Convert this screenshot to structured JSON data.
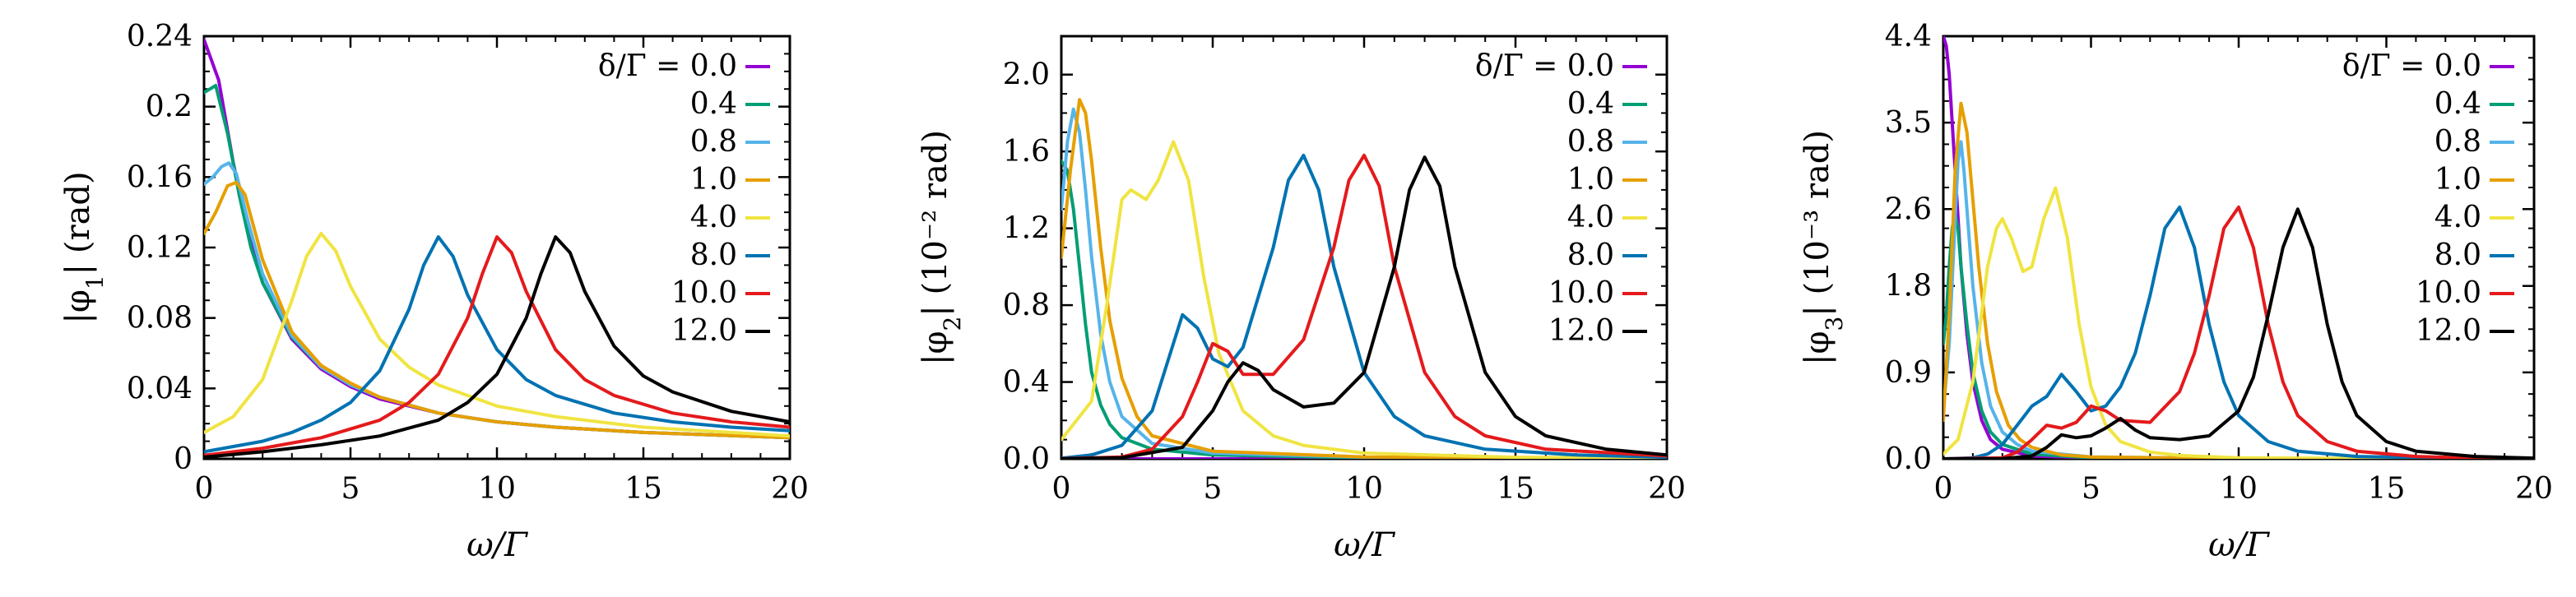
{
  "chart_data": [
    {
      "type": "line",
      "xlabel": "ω/Γ",
      "ylabel": "|φ1| (rad)",
      "xlim": [
        0,
        20
      ],
      "ylim": [
        0,
        0.24
      ],
      "xticks": [
        "0",
        "5",
        "10",
        "15",
        "20"
      ],
      "yticks": [
        "0",
        "0.04",
        "0.08",
        "0.12",
        "0.16",
        "0.2",
        "0.24"
      ],
      "legend_title": "δ/Γ = ",
      "legend_position": "top-right",
      "series": [
        {
          "name": "0.0",
          "color": "#9400d3",
          "x": [
            0,
            0.5,
            1,
            1.5,
            2,
            3,
            4,
            5,
            6,
            8,
            10,
            12,
            15,
            20
          ],
          "y": [
            0.238,
            0.215,
            0.168,
            0.128,
            0.1,
            0.068,
            0.051,
            0.041,
            0.034,
            0.026,
            0.021,
            0.018,
            0.015,
            0.012
          ]
        },
        {
          "name": "0.4",
          "color": "#009e73",
          "x": [
            0,
            0.4,
            0.8,
            1.2,
            1.6,
            2,
            3,
            4,
            5,
            6,
            8,
            10,
            12,
            15,
            20
          ],
          "y": [
            0.208,
            0.212,
            0.185,
            0.15,
            0.12,
            0.1,
            0.069,
            0.052,
            0.042,
            0.035,
            0.026,
            0.021,
            0.018,
            0.015,
            0.012
          ]
        },
        {
          "name": "0.8",
          "color": "#56b4e9",
          "x": [
            0,
            0.3,
            0.6,
            0.85,
            1.1,
            1.5,
            2,
            3,
            4,
            5,
            6,
            8,
            10,
            12,
            15,
            20
          ],
          "y": [
            0.156,
            0.16,
            0.166,
            0.168,
            0.162,
            0.135,
            0.105,
            0.07,
            0.052,
            0.042,
            0.035,
            0.026,
            0.021,
            0.018,
            0.015,
            0.012
          ]
        },
        {
          "name": "1.0",
          "color": "#e69f00",
          "x": [
            0,
            0.4,
            0.8,
            1.1,
            1.4,
            2,
            3,
            4,
            5,
            6,
            8,
            10,
            12,
            15,
            20
          ],
          "y": [
            0.128,
            0.14,
            0.155,
            0.157,
            0.15,
            0.113,
            0.072,
            0.053,
            0.043,
            0.035,
            0.026,
            0.021,
            0.018,
            0.015,
            0.012
          ]
        },
        {
          "name": "4.0",
          "color": "#f0e442",
          "x": [
            0,
            1,
            2,
            3,
            3.5,
            4,
            4.5,
            5,
            6,
            7,
            8,
            10,
            12,
            15,
            20
          ],
          "y": [
            0.015,
            0.024,
            0.045,
            0.09,
            0.115,
            0.128,
            0.118,
            0.098,
            0.068,
            0.052,
            0.042,
            0.03,
            0.024,
            0.018,
            0.013
          ]
        },
        {
          "name": "8.0",
          "color": "#0072b2",
          "x": [
            0,
            1,
            2,
            3,
            4,
            5,
            6,
            7,
            7.5,
            8,
            8.5,
            9,
            10,
            11,
            12,
            14,
            16,
            18,
            20
          ],
          "y": [
            0.004,
            0.007,
            0.01,
            0.015,
            0.022,
            0.032,
            0.05,
            0.085,
            0.11,
            0.126,
            0.115,
            0.093,
            0.062,
            0.045,
            0.036,
            0.026,
            0.021,
            0.018,
            0.016
          ]
        },
        {
          "name": "10.0",
          "color": "#e41a1c",
          "x": [
            0,
            2,
            4,
            6,
            7,
            8,
            9,
            9.5,
            10,
            10.5,
            11,
            12,
            13,
            14,
            16,
            18,
            20
          ],
          "y": [
            0.002,
            0.006,
            0.012,
            0.022,
            0.032,
            0.048,
            0.08,
            0.105,
            0.126,
            0.117,
            0.095,
            0.062,
            0.045,
            0.036,
            0.026,
            0.021,
            0.018
          ]
        },
        {
          "name": "12.0",
          "color": "#000000",
          "x": [
            0,
            2,
            4,
            6,
            8,
            9,
            10,
            11,
            11.5,
            12,
            12.5,
            13,
            14,
            15,
            16,
            18,
            20
          ],
          "y": [
            0.001,
            0.004,
            0.008,
            0.013,
            0.022,
            0.032,
            0.048,
            0.08,
            0.105,
            0.126,
            0.117,
            0.095,
            0.064,
            0.047,
            0.038,
            0.027,
            0.021
          ]
        }
      ]
    },
    {
      "type": "line",
      "xlabel": "ω/Γ",
      "ylabel": "|φ2| (10⁻² rad)",
      "xlim": [
        0,
        20
      ],
      "ylim": [
        0,
        2.2
      ],
      "xticks": [
        "0",
        "5",
        "10",
        "15",
        "20"
      ],
      "yticks": [
        "0.0",
        "0.4",
        "0.8",
        "1.2",
        "1.6",
        "2.0"
      ],
      "legend_title": "δ/Γ = ",
      "legend_position": "top-right",
      "series": [
        {
          "name": "0.0",
          "color": "#9400d3",
          "x": [
            0,
            1,
            2,
            3,
            5,
            10,
            20
          ],
          "y": [
            0,
            0,
            0,
            0,
            0,
            0,
            0
          ]
        },
        {
          "name": "0.4",
          "color": "#009e73",
          "x": [
            0,
            0.2,
            0.4,
            0.6,
            0.8,
            1.0,
            1.3,
            1.6,
            2.0,
            3.0,
            5,
            10,
            20
          ],
          "y": [
            1.55,
            1.5,
            1.3,
            1.0,
            0.7,
            0.45,
            0.28,
            0.18,
            0.11,
            0.05,
            0.02,
            0.005,
            0.001
          ]
        },
        {
          "name": "0.8",
          "color": "#56b4e9",
          "x": [
            0,
            0.2,
            0.4,
            0.6,
            0.8,
            1.0,
            1.3,
            1.6,
            2.0,
            3.0,
            5,
            10,
            20
          ],
          "y": [
            1.3,
            1.65,
            1.82,
            1.7,
            1.4,
            1.05,
            0.65,
            0.4,
            0.22,
            0.08,
            0.03,
            0.008,
            0.002
          ]
        },
        {
          "name": "1.0",
          "color": "#e69f00",
          "x": [
            0,
            0.3,
            0.6,
            0.8,
            1.0,
            1.3,
            1.6,
            2.0,
            2.5,
            3.0,
            5,
            10,
            20
          ],
          "y": [
            1.05,
            1.5,
            1.87,
            1.8,
            1.55,
            1.1,
            0.72,
            0.42,
            0.22,
            0.12,
            0.04,
            0.01,
            0.002
          ]
        },
        {
          "name": "4.0",
          "color": "#f0e442",
          "x": [
            0,
            1,
            1.5,
            2.0,
            2.3,
            2.8,
            3.2,
            3.7,
            4.2,
            4.7,
            5.2,
            6,
            7,
            8,
            10,
            15,
            20
          ],
          "y": [
            0.1,
            0.3,
            0.8,
            1.35,
            1.4,
            1.35,
            1.45,
            1.65,
            1.45,
            0.95,
            0.55,
            0.25,
            0.12,
            0.07,
            0.03,
            0.008,
            0.003
          ]
        },
        {
          "name": "8.0",
          "color": "#0072b2",
          "x": [
            0,
            1,
            2,
            3,
            3.5,
            4.0,
            4.5,
            5.0,
            5.5,
            6,
            7,
            7.5,
            8,
            8.5,
            9,
            10,
            11,
            12,
            14,
            17,
            20
          ],
          "y": [
            0.003,
            0.02,
            0.07,
            0.25,
            0.5,
            0.75,
            0.68,
            0.52,
            0.48,
            0.58,
            1.1,
            1.45,
            1.58,
            1.4,
            1.0,
            0.45,
            0.22,
            0.12,
            0.05,
            0.02,
            0.008
          ]
        },
        {
          "name": "10.0",
          "color": "#e41a1c",
          "x": [
            0,
            2,
            3,
            4,
            4.5,
            5.0,
            5.5,
            6,
            7,
            8,
            9,
            9.5,
            10,
            10.5,
            11,
            12,
            13,
            14,
            16,
            20
          ],
          "y": [
            0.001,
            0.01,
            0.05,
            0.22,
            0.4,
            0.6,
            0.56,
            0.44,
            0.44,
            0.62,
            1.1,
            1.45,
            1.58,
            1.42,
            1.0,
            0.45,
            0.22,
            0.12,
            0.05,
            0.015
          ]
        },
        {
          "name": "12.0",
          "color": "#000000",
          "x": [
            0,
            2,
            4,
            5,
            5.5,
            6,
            6.5,
            7,
            8,
            9,
            10,
            11,
            11.5,
            12,
            12.5,
            13,
            14,
            15,
            16,
            18,
            20
          ],
          "y": [
            0.0005,
            0.006,
            0.06,
            0.25,
            0.4,
            0.5,
            0.46,
            0.36,
            0.27,
            0.29,
            0.45,
            1.0,
            1.4,
            1.57,
            1.42,
            1.0,
            0.45,
            0.22,
            0.12,
            0.05,
            0.02
          ]
        }
      ]
    },
    {
      "type": "line",
      "xlabel": "ω/Γ",
      "ylabel": "|φ3| (10⁻³ rad)",
      "xlim": [
        0,
        20
      ],
      "ylim": [
        0,
        4.4
      ],
      "xticks": [
        "0",
        "5",
        "10",
        "15",
        "20"
      ],
      "yticks": [
        "0.0",
        "0.9",
        "1.8",
        "2.6",
        "3.5",
        "4.4"
      ],
      "legend_title": "δ/Γ = ",
      "legend_position": "top-right",
      "series": [
        {
          "name": "0.0",
          "color": "#9400d3",
          "x": [
            0,
            0.1,
            0.2,
            0.4,
            0.6,
            0.8,
            1.0,
            1.3,
            1.6,
            2.0,
            3,
            5,
            10,
            20
          ],
          "y": [
            4.4,
            4.3,
            4.0,
            3.0,
            2.0,
            1.3,
            0.8,
            0.4,
            0.2,
            0.1,
            0.03,
            0.01,
            0.003,
            0.001
          ]
        },
        {
          "name": "0.4",
          "color": "#009e73",
          "x": [
            0,
            0.1,
            0.2,
            0.3,
            0.4,
            0.5,
            0.6,
            0.8,
            1.0,
            1.3,
            1.6,
            2.0,
            3,
            5,
            10,
            20
          ],
          "y": [
            1.2,
            1.5,
            2.0,
            2.4,
            2.55,
            2.4,
            2.0,
            1.4,
            0.9,
            0.5,
            0.28,
            0.15,
            0.05,
            0.01,
            0.003,
            0.001
          ]
        },
        {
          "name": "0.8",
          "color": "#56b4e9",
          "x": [
            0,
            0.2,
            0.4,
            0.5,
            0.6,
            0.7,
            0.8,
            1.0,
            1.3,
            1.6,
            2.0,
            2.5,
            3,
            5,
            10,
            20
          ],
          "y": [
            0.5,
            1.2,
            2.5,
            3.1,
            3.3,
            3.0,
            2.6,
            1.8,
            1.0,
            0.55,
            0.28,
            0.15,
            0.08,
            0.02,
            0.004,
            0.001
          ]
        },
        {
          "name": "1.0",
          "color": "#e69f00",
          "x": [
            0,
            0.2,
            0.4,
            0.6,
            0.8,
            1.0,
            1.2,
            1.5,
            1.8,
            2.2,
            2.6,
            3.0,
            4,
            5,
            10,
            20
          ],
          "y": [
            0.4,
            1.5,
            3.0,
            3.7,
            3.4,
            2.7,
            2.0,
            1.2,
            0.7,
            0.35,
            0.2,
            0.12,
            0.04,
            0.02,
            0.004,
            0.001
          ]
        },
        {
          "name": "4.0",
          "color": "#f0e442",
          "x": [
            0,
            0.5,
            1.0,
            1.5,
            1.8,
            2.0,
            2.3,
            2.7,
            3.0,
            3.4,
            3.8,
            4.2,
            4.6,
            5.0,
            5.5,
            6,
            7,
            8,
            10,
            15,
            20
          ],
          "y": [
            0.05,
            0.2,
            0.8,
            2.0,
            2.4,
            2.5,
            2.3,
            1.95,
            2.0,
            2.5,
            2.82,
            2.3,
            1.4,
            0.75,
            0.35,
            0.18,
            0.07,
            0.035,
            0.01,
            0.003,
            0.001
          ]
        },
        {
          "name": "8.0",
          "color": "#0072b2",
          "x": [
            0,
            1,
            1.5,
            2,
            2.5,
            3.0,
            3.5,
            4.0,
            4.5,
            5.0,
            5.5,
            6,
            6.5,
            7,
            7.5,
            8,
            8.5,
            9,
            9.5,
            10,
            11,
            12,
            14,
            17,
            20
          ],
          "y": [
            0,
            0.01,
            0.05,
            0.15,
            0.35,
            0.55,
            0.65,
            0.88,
            0.7,
            0.5,
            0.55,
            0.75,
            1.1,
            1.7,
            2.4,
            2.62,
            2.2,
            1.4,
            0.8,
            0.45,
            0.18,
            0.08,
            0.025,
            0.008,
            0.003
          ]
        },
        {
          "name": "10.0",
          "color": "#e41a1c",
          "x": [
            0,
            2,
            2.5,
            3.0,
            3.5,
            4.0,
            4.5,
            5.0,
            5.5,
            6,
            7,
            8,
            8.5,
            9,
            9.5,
            10,
            10.5,
            11,
            11.5,
            12,
            13,
            14,
            16,
            18,
            20
          ],
          "y": [
            0,
            0.01,
            0.07,
            0.2,
            0.35,
            0.32,
            0.38,
            0.55,
            0.5,
            0.4,
            0.38,
            0.7,
            1.1,
            1.7,
            2.4,
            2.62,
            2.2,
            1.4,
            0.8,
            0.45,
            0.18,
            0.08,
            0.025,
            0.008,
            0.003
          ]
        },
        {
          "name": "12.0",
          "color": "#000000",
          "x": [
            0,
            2,
            3,
            3.5,
            4.0,
            4.5,
            5.0,
            5.5,
            6.0,
            6.5,
            7,
            8,
            9,
            10,
            10.5,
            11,
            11.5,
            12,
            12.5,
            13,
            13.5,
            14,
            15,
            16,
            18,
            20
          ],
          "y": [
            0,
            0.002,
            0.03,
            0.12,
            0.25,
            0.22,
            0.24,
            0.32,
            0.42,
            0.3,
            0.22,
            0.2,
            0.24,
            0.5,
            0.85,
            1.5,
            2.2,
            2.6,
            2.2,
            1.4,
            0.8,
            0.45,
            0.18,
            0.08,
            0.025,
            0.008
          ]
        }
      ]
    }
  ]
}
